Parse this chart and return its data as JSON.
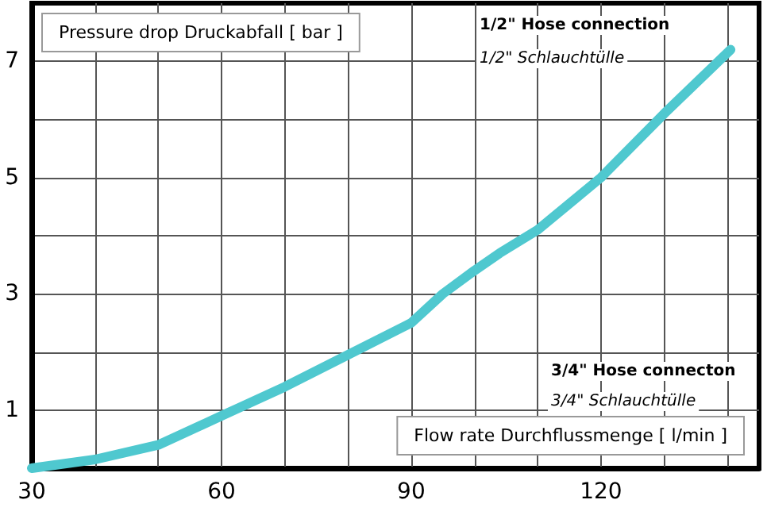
{
  "chart_data": {
    "type": "line",
    "ylabel": "Pressure drop Druckabfall [ bar ]",
    "xlabel": "Flow rate Durchflussmenge [ l/min ]",
    "annotations": [
      "1/2\" Hose connection",
      "1/2\" Schlauchtülle",
      "3/4\" Hose connecton",
      "3/4\" Schlauchtülle"
    ],
    "x": [
      30,
      40,
      50,
      60,
      70,
      80,
      90,
      95,
      100,
      104,
      110,
      120,
      130,
      140.5
    ],
    "series": [
      {
        "color": "#4fc8cf",
        "values": [
          0,
          0.15,
          0.4,
          0.9,
          1.4,
          1.95,
          2.5,
          3,
          3.4,
          3.7,
          4.1,
          5,
          6.1,
          7.2
        ]
      }
    ],
    "xlim": [
      30,
      145
    ],
    "ylim": [
      0,
      8
    ],
    "xticks": [
      30,
      {
        "value": 40,
        "label": null
      },
      {
        "value": 50,
        "label": null
      },
      60,
      {
        "value": 70,
        "label": null
      },
      {
        "value": 80,
        "label": null
      },
      90,
      {
        "value": 100,
        "label": null
      },
      {
        "value": 110,
        "label": null
      },
      120,
      {
        "value": 130,
        "label": null
      },
      {
        "value": 140,
        "label": null
      }
    ],
    "yticks": [
      1,
      {
        "value": 2,
        "label": null
      },
      3,
      {
        "value": 4,
        "label": null
      },
      5,
      {
        "value": 6,
        "label": null
      },
      7
    ],
    "grid": true,
    "marker": "none",
    "line_style": "solid"
  }
}
